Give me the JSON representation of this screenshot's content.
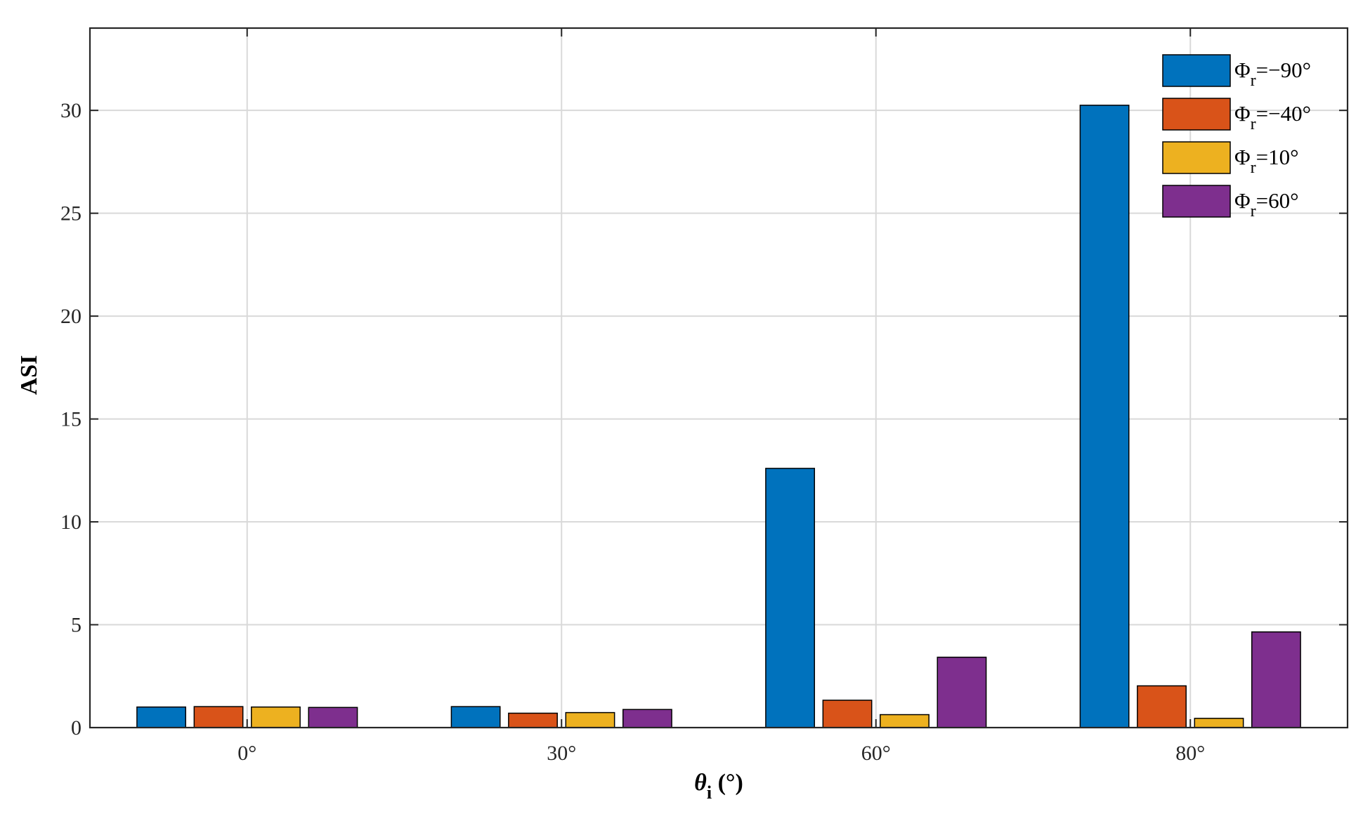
{
  "chart_data": {
    "type": "bar",
    "title": "",
    "xlabel": {
      "symbol": "θ",
      "subscript": "i",
      "unit": " (°)"
    },
    "ylabel": "ASI",
    "categories": [
      "0°",
      "30°",
      "60°",
      "80°"
    ],
    "ylim": [
      0,
      34
    ],
    "yticks": [
      0,
      5,
      10,
      15,
      20,
      25,
      30
    ],
    "grid": true,
    "legend_position": "top-right",
    "series": [
      {
        "name": "Φr=−90°",
        "legend": {
          "symbol": "Φ",
          "subscript": "r",
          "suffix": "=−90°"
        },
        "color": "#0072BD",
        "values": [
          1.0,
          1.02,
          12.6,
          30.25
        ]
      },
      {
        "name": "Φr=−40°",
        "legend": {
          "symbol": "Φ",
          "subscript": "r",
          "suffix": "=−40°"
        },
        "color": "#D95319",
        "values": [
          1.02,
          0.7,
          1.33,
          2.03
        ]
      },
      {
        "name": "Φr=10°",
        "legend": {
          "symbol": "Φ",
          "subscript": "r",
          "suffix": "=10°"
        },
        "color": "#EDB120",
        "values": [
          1.0,
          0.73,
          0.63,
          0.45
        ]
      },
      {
        "name": "Φr=60°",
        "legend": {
          "symbol": "Φ",
          "subscript": "r",
          "suffix": "=60°"
        },
        "color": "#7E2F8E",
        "values": [
          0.98,
          0.88,
          3.42,
          4.65
        ]
      }
    ]
  }
}
